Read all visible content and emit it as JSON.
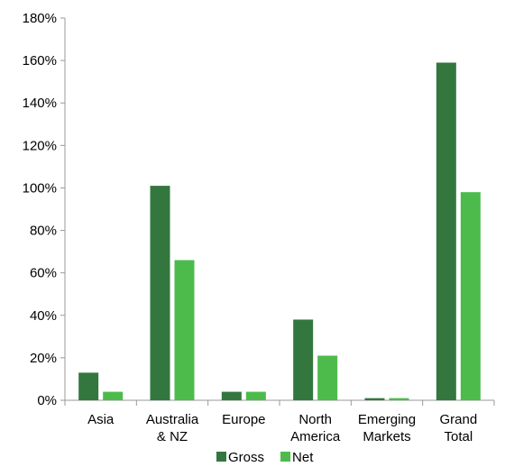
{
  "chart_data": {
    "type": "bar",
    "categories": [
      [
        "Asia"
      ],
      [
        "Australia",
        "& NZ"
      ],
      [
        "Europe"
      ],
      [
        "North",
        "America"
      ],
      [
        "Emerging",
        "Markets"
      ],
      [
        "Grand",
        "Total"
      ]
    ],
    "series": [
      {
        "name": "Gross",
        "color": "#33773f",
        "values": [
          13,
          101,
          4,
          38,
          1,
          159
        ]
      },
      {
        "name": "Net",
        "color": "#4cbb4c",
        "values": [
          4,
          66,
          4,
          21,
          1,
          98
        ]
      }
    ],
    "y_ticks": [
      "0%",
      "20%",
      "40%",
      "60%",
      "80%",
      "100%",
      "120%",
      "140%",
      "160%",
      "180%"
    ],
    "ylim": [
      0,
      180
    ],
    "y_unit": "%",
    "grid": false,
    "legend_position": "bottom-center",
    "title": "",
    "xlabel": "",
    "ylabel": ""
  }
}
